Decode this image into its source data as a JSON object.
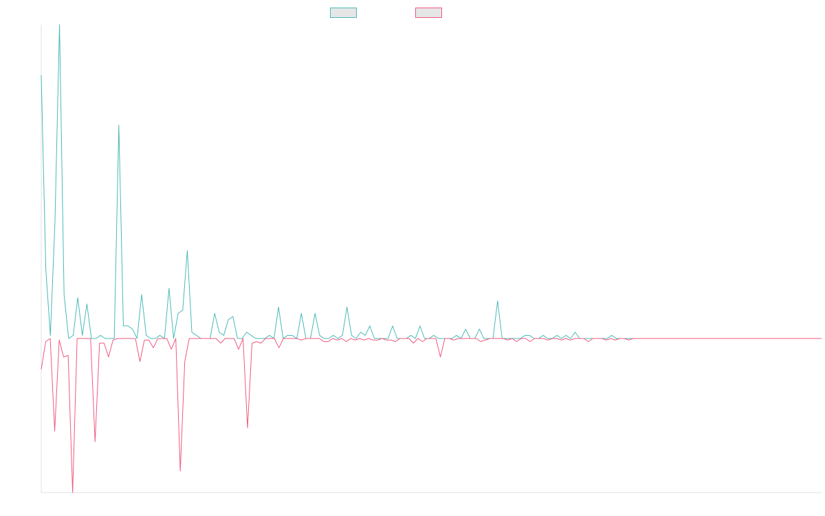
{
  "chart_data": {
    "type": "line",
    "title": "",
    "xlabel": "",
    "ylabel": "",
    "grid": false,
    "legend_position": "top-center",
    "ylim": [
      -1,
      1
    ],
    "colors": {
      "positive": "#48b9b7",
      "negative": "#f0587f",
      "legend_fill": "#e6e6e6",
      "axis": "#e0e0e0"
    },
    "series": [
      {
        "name": "",
        "color": "#48b9b7",
        "values": [
          0.84,
          0.22,
          0.01,
          0.37,
          1.02,
          0.14,
          0.0,
          0.01,
          0.13,
          0.01,
          0.11,
          0.0,
          0.0,
          0.01,
          0.0,
          0.0,
          0.0,
          0.68,
          0.04,
          0.04,
          0.03,
          0.0,
          0.14,
          0.01,
          0.0,
          0.0,
          0.01,
          0.0,
          0.16,
          0.0,
          0.08,
          0.09,
          0.28,
          0.02,
          0.01,
          0.0,
          0.0,
          0.0,
          0.08,
          0.02,
          0.01,
          0.06,
          0.07,
          0.0,
          0.0,
          0.02,
          0.01,
          0.0,
          0.0,
          0.0,
          0.01,
          0.0,
          0.1,
          0.0,
          0.01,
          0.01,
          0.0,
          0.08,
          0.0,
          0.0,
          0.08,
          0.01,
          0.0,
          0.0,
          0.01,
          0.0,
          0.01,
          0.1,
          0.01,
          0.0,
          0.02,
          0.01,
          0.04,
          0.0,
          0.0,
          0.0,
          0.0,
          0.04,
          0.0,
          0.0,
          0.0,
          0.01,
          0.0,
          0.04,
          0.0,
          0.0,
          0.01,
          0.0,
          0.0,
          0.0,
          0.0,
          0.01,
          0.0,
          0.03,
          0.0,
          0.0,
          0.03,
          0.0,
          0.0,
          0.0,
          0.12,
          0.0,
          0.0,
          0.0,
          0.0,
          0.0,
          0.01,
          0.01,
          0.0,
          0.0,
          0.01,
          0.0,
          0.0,
          0.01,
          0.0,
          0.01,
          0.0,
          0.02,
          0.0,
          0.0,
          0.0,
          0.0,
          0.0,
          0.0,
          0.0,
          0.01,
          0.0,
          0.0,
          0.0,
          0.0,
          0.0,
          0.0,
          0.0,
          0.0,
          0.0,
          0.0,
          0.0,
          0.0,
          0.0,
          0.0,
          0.0,
          0.0,
          0.0,
          0.0,
          0.0,
          0.0,
          0.0,
          0.0,
          0.0,
          0.0,
          0.0,
          0.0,
          0.0,
          0.0,
          0.0,
          0.0,
          0.0,
          0.0,
          0.0,
          0.0,
          0.0,
          0.0,
          0.0,
          0.0,
          0.0,
          0.0,
          0.0,
          0.0,
          0.0,
          0.0,
          0.0,
          0.0
        ]
      },
      {
        "name": "",
        "color": "#f0587f",
        "values": [
          -0.2,
          -0.02,
          0.0,
          -0.6,
          -0.01,
          -0.12,
          -0.11,
          -1.0,
          0.0,
          0.0,
          0.0,
          0.0,
          -0.67,
          -0.03,
          -0.03,
          -0.12,
          -0.01,
          0.0,
          0.0,
          0.0,
          0.0,
          0.0,
          -0.15,
          -0.01,
          -0.01,
          -0.06,
          0.0,
          0.0,
          0.0,
          -0.07,
          0.0,
          -0.86,
          -0.15,
          0.0,
          0.0,
          0.0,
          0.0,
          0.0,
          0.0,
          0.0,
          -0.03,
          0.0,
          0.0,
          0.0,
          -0.07,
          0.0,
          -0.58,
          -0.03,
          -0.02,
          -0.03,
          0.0,
          0.0,
          0.0,
          -0.06,
          0.0,
          0.0,
          0.0,
          0.0,
          -0.01,
          0.0,
          0.0,
          0.0,
          0.0,
          -0.02,
          -0.02,
          0.0,
          -0.01,
          0.0,
          -0.02,
          0.0,
          -0.01,
          0.0,
          -0.01,
          0.0,
          -0.01,
          -0.01,
          0.0,
          -0.01,
          -0.01,
          -0.02,
          0.0,
          0.0,
          0.0,
          -0.03,
          0.0,
          -0.02,
          0.0,
          0.0,
          0.0,
          -0.12,
          0.0,
          0.0,
          -0.01,
          0.0,
          0.0,
          0.0,
          0.0,
          0.0,
          -0.02,
          -0.01,
          0.0,
          0.0,
          0.0,
          0.0,
          -0.01,
          0.0,
          -0.02,
          0.0,
          0.0,
          -0.02,
          0.0,
          0.0,
          0.0,
          -0.01,
          0.0,
          0.0,
          -0.01,
          0.0,
          -0.01,
          0.0,
          0.0,
          0.0,
          -0.02,
          0.0,
          0.0,
          0.0,
          -0.01,
          0.0,
          -0.01,
          0.0,
          0.0,
          -0.01,
          0.0,
          0.0,
          0.0,
          0.0,
          0.0,
          0.0,
          0.0,
          0.0,
          0.0,
          0.0,
          0.0,
          0.0,
          0.0,
          0.0,
          0.0,
          0.0,
          0.0,
          0.0,
          0.0,
          0.0,
          0.0,
          0.0,
          0.0,
          0.0,
          0.0,
          0.0,
          0.0,
          0.0,
          0.0,
          0.0,
          0.0,
          0.0,
          0.0,
          0.0,
          0.0,
          0.0,
          0.0,
          0.0,
          0.0,
          0.0,
          0.0,
          0.0,
          0.0
        ]
      }
    ]
  }
}
